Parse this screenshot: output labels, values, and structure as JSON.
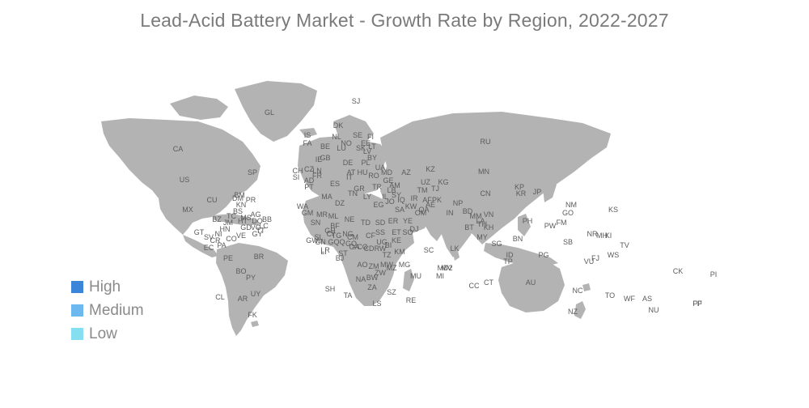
{
  "title": "Lead-Acid Battery Market - Growth Rate by Region, 2022-2027",
  "legend": [
    {
      "label": "High",
      "color": "#3b86d9"
    },
    {
      "label": "Medium",
      "color": "#6cb8ef"
    },
    {
      "label": "Low",
      "color": "#86dff0"
    }
  ],
  "land_color": "#b3b3b3",
  "country_codes": [
    "GL",
    "SJ",
    "IS",
    "FA",
    "DK",
    "NL",
    "NO",
    "SE",
    "FI",
    "BE",
    "LU",
    "SK",
    "LT",
    "EE",
    "LV",
    "BY",
    "IE",
    "GB",
    "DE",
    "PL",
    "UA",
    "CZ",
    "FR",
    "AT",
    "CH",
    "SI",
    "LN",
    "IT",
    "HU",
    "RO",
    "MD",
    "AD",
    "PT",
    "ES",
    "GR",
    "TR",
    "GE",
    "AZ",
    "AM",
    "KZ",
    "UZ",
    "TM",
    "KG",
    "TJ",
    "RU",
    "MN",
    "CN",
    "KP",
    "KR",
    "JP",
    "CA",
    "US",
    "SP",
    "MX",
    "CU",
    "BM",
    "DM",
    "KN",
    "PR",
    "BS",
    "AG",
    "TC",
    "MS",
    "BB",
    "HT",
    "JM",
    "DO",
    "LC",
    "VC",
    "GD",
    "TT",
    "BZ",
    "GT",
    "SV",
    "HN",
    "NI",
    "CR",
    "PA",
    "CO",
    "VE",
    "GY",
    "EC",
    "PE",
    "BR",
    "BO",
    "PY",
    "UY",
    "AR",
    "CL",
    "FK",
    "MA",
    "DZ",
    "TN",
    "LY",
    "EG",
    "IL",
    "LB",
    "SY",
    "IQ",
    "IR",
    "AF",
    "PK",
    "IN",
    "NP",
    "BD",
    "MM",
    "LA",
    "VN",
    "TH",
    "KH",
    "BT",
    "LK",
    "MY",
    "SG",
    "ID",
    "BN",
    "PH",
    "TP",
    "PG",
    "AU",
    "NZ",
    "NC",
    "VU",
    "FJ",
    "SB",
    "NR",
    "MH",
    "KI",
    "TV",
    "WS",
    "TO",
    "WF",
    "AS",
    "NU",
    "CK",
    "PF",
    "PI",
    "FP",
    "KS",
    "NM",
    "GO",
    "PW",
    "FM",
    "SA",
    "YE",
    "OM",
    "AE",
    "QA",
    "KW",
    "JO",
    "WA",
    "MR",
    "ML",
    "SN",
    "GM",
    "GW",
    "GN",
    "SL",
    "LR",
    "CI",
    "BF",
    "GH",
    "TG",
    "BJ",
    "NE",
    "NG",
    "CM",
    "TD",
    "SD",
    "SS",
    "ER",
    "ET",
    "DJ",
    "SO",
    "KE",
    "UG",
    "RW",
    "BI",
    "TZ",
    "CF",
    "GQ",
    "GA",
    "CG",
    "CD",
    "AO",
    "ZM",
    "MW",
    "MZ",
    "ZW",
    "BW",
    "NA",
    "ZA",
    "LS",
    "SZ",
    "MG",
    "MU",
    "MI",
    "RE",
    "KM",
    "SC",
    "MV",
    "SH",
    "TA",
    "CC",
    "CT",
    "ST",
    "GQQ",
    "LI",
    "MD2"
  ]
}
